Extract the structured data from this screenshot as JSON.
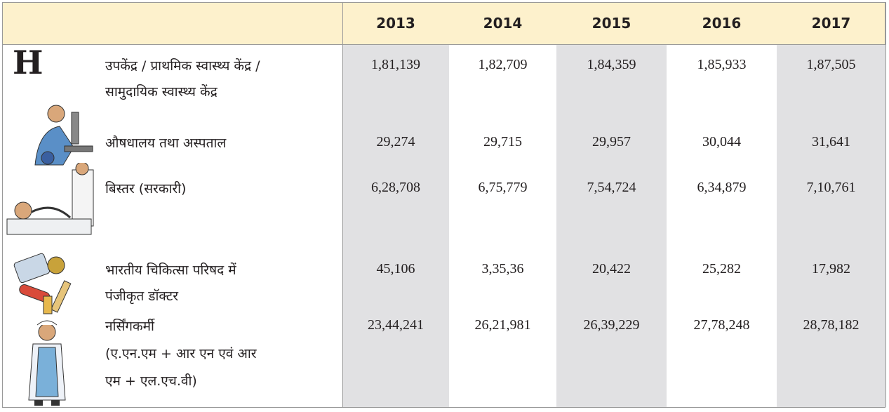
{
  "table": {
    "header": [
      "2013",
      "2014",
      "2015",
      "2016",
      "2017"
    ],
    "icon_text": "H",
    "rows": [
      {
        "label": [
          "उपकेंद्र / प्राथमिक स्वास्थ्य केंद्र /",
          "सामुदायिक स्वास्थ्य केंद्र"
        ],
        "values": [
          "1,81,139",
          "1,82,709",
          "1,84,359",
          "1,85,933",
          "1,87,505"
        ]
      },
      {
        "label": [
          "औषधालय तथा अस्पताल"
        ],
        "values": [
          "29,274",
          "29,715",
          "29,957",
          "30,044",
          "31,641"
        ]
      },
      {
        "label": [
          "बिस्तर (सरकारी)"
        ],
        "values": [
          "6,28,708",
          "6,75,779",
          "7,54,724",
          "6,34,879",
          "7,10,761"
        ]
      },
      {
        "label": [
          "भारतीय चिकित्सा परिषद में",
          "पंजीकृत डॉक्टर"
        ],
        "values": [
          "45,106",
          "3,35,36",
          "20,422",
          "25,282",
          "17,982"
        ]
      },
      {
        "label": [
          "नर्सिंगकर्मी",
          "(ए.एन.एम + आर एन एवं आर",
          "एम + एल.एच.वी)"
        ],
        "values": [
          "23,44,241",
          "26,21,981",
          "26,39,229",
          "27,78,248",
          "28,78,182"
        ]
      }
    ]
  }
}
